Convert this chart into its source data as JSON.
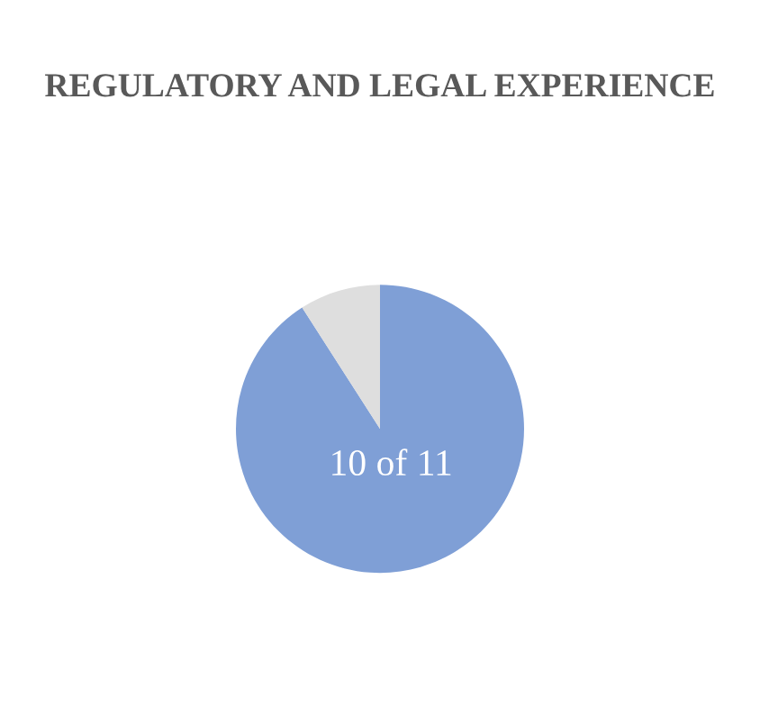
{
  "chart_data": {
    "type": "pie",
    "title": "REGULATORY AND LEGAL EXPERIENCE",
    "categories": [
      null,
      null
    ],
    "values": [
      10,
      1
    ],
    "colors": [
      "#7f9fd6",
      "#dedede"
    ],
    "value_labels": [
      "10 of 11",
      null
    ]
  }
}
